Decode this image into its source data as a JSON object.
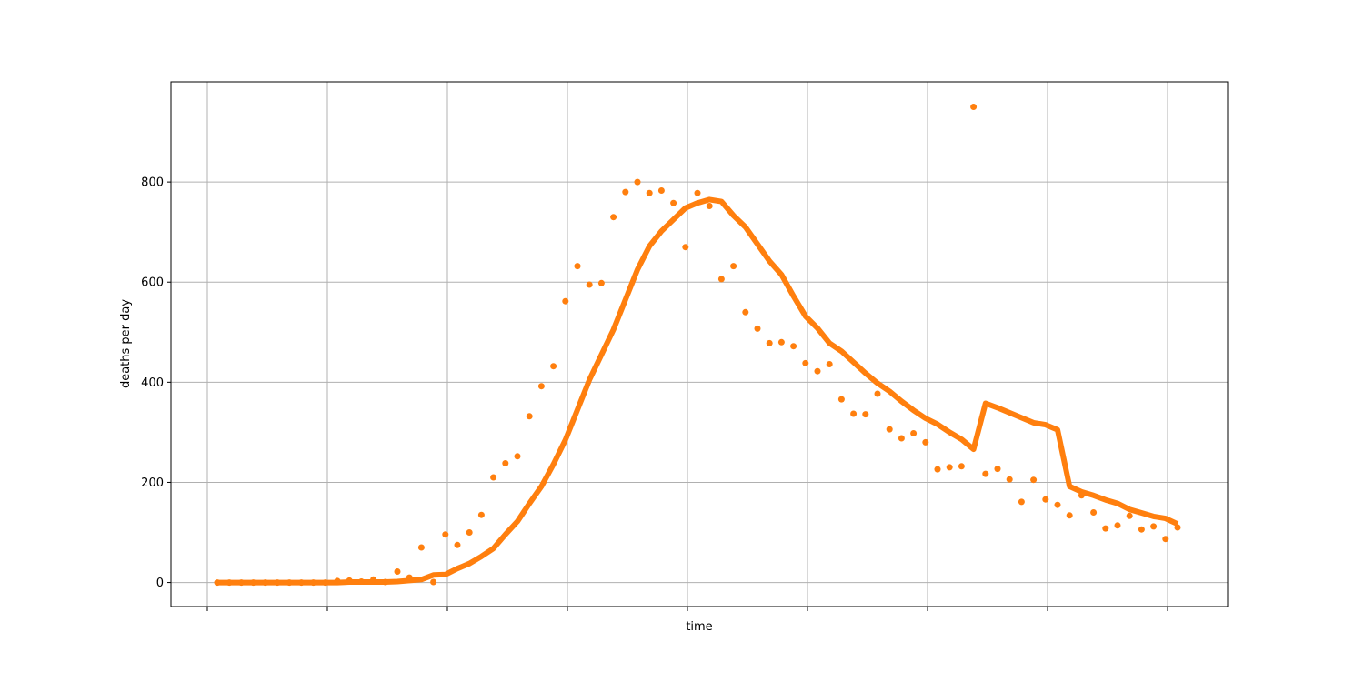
{
  "chart_data": {
    "type": "line",
    "xlabel": "time",
    "ylabel": "deaths per day",
    "title": "",
    "ylim": [
      -48,
      1000
    ],
    "grid": true,
    "yticks": [
      0,
      200,
      400,
      600,
      800
    ],
    "x_tick_count": 9,
    "colors": {
      "series": "#ff7f0e",
      "grid": "#b0b0b0",
      "axis": "#000000",
      "background": "#ffffff"
    },
    "series": [
      {
        "kind": "scatter",
        "points": [
          [
            0,
            0
          ],
          [
            1,
            0
          ],
          [
            2,
            0
          ],
          [
            3,
            0
          ],
          [
            4,
            0
          ],
          [
            5,
            0
          ],
          [
            6,
            0
          ],
          [
            7,
            0
          ],
          [
            8,
            0
          ],
          [
            9,
            0
          ],
          [
            10,
            3
          ],
          [
            11,
            4
          ],
          [
            12,
            2
          ],
          [
            13,
            6
          ],
          [
            14,
            1
          ],
          [
            15,
            22
          ],
          [
            16,
            10
          ],
          [
            17,
            70
          ],
          [
            18,
            1
          ],
          [
            19,
            96
          ],
          [
            20,
            75
          ],
          [
            21,
            100
          ],
          [
            22,
            135
          ],
          [
            23,
            210
          ],
          [
            24,
            238
          ],
          [
            25,
            252
          ],
          [
            26,
            332
          ],
          [
            27,
            392
          ],
          [
            28,
            432
          ],
          [
            29,
            562
          ],
          [
            30,
            632
          ],
          [
            31,
            595
          ],
          [
            32,
            598
          ],
          [
            33,
            730
          ],
          [
            34,
            780
          ],
          [
            35,
            800
          ],
          [
            36,
            778
          ],
          [
            37,
            783
          ],
          [
            38,
            758
          ],
          [
            39,
            670
          ],
          [
            40,
            778
          ],
          [
            41,
            752
          ],
          [
            42,
            606
          ],
          [
            43,
            632
          ],
          [
            44,
            540
          ],
          [
            45,
            507
          ],
          [
            46,
            478
          ],
          [
            47,
            480
          ],
          [
            48,
            472
          ],
          [
            49,
            438
          ],
          [
            50,
            422
          ],
          [
            51,
            436
          ],
          [
            52,
            366
          ],
          [
            53,
            337
          ],
          [
            54,
            336
          ],
          [
            55,
            377
          ],
          [
            56,
            306
          ],
          [
            57,
            288
          ],
          [
            58,
            298
          ],
          [
            59,
            280
          ],
          [
            60,
            226
          ],
          [
            61,
            230
          ],
          [
            62,
            232
          ],
          [
            63,
            950
          ],
          [
            64,
            217
          ],
          [
            65,
            227
          ],
          [
            66,
            206
          ],
          [
            67,
            161
          ],
          [
            68,
            205
          ],
          [
            69,
            166
          ],
          [
            70,
            155
          ],
          [
            71,
            134
          ],
          [
            72,
            174
          ],
          [
            73,
            140
          ],
          [
            74,
            108
          ],
          [
            75,
            114
          ],
          [
            76,
            133
          ],
          [
            77,
            106
          ],
          [
            78,
            112
          ],
          [
            79,
            87
          ],
          [
            80,
            110
          ]
        ]
      },
      {
        "kind": "line",
        "points": [
          [
            0,
            0
          ],
          [
            1,
            0
          ],
          [
            2,
            0
          ],
          [
            3,
            0
          ],
          [
            4,
            0
          ],
          [
            5,
            0
          ],
          [
            6,
            0
          ],
          [
            7,
            0
          ],
          [
            8,
            0
          ],
          [
            9,
            0
          ],
          [
            10,
            0
          ],
          [
            11,
            1
          ],
          [
            12,
            1
          ],
          [
            13,
            1
          ],
          [
            14,
            1
          ],
          [
            15,
            2
          ],
          [
            16,
            4
          ],
          [
            17,
            6
          ],
          [
            18,
            15
          ],
          [
            19,
            16
          ],
          [
            20,
            28
          ],
          [
            21,
            38
          ],
          [
            22,
            52
          ],
          [
            23,
            68
          ],
          [
            24,
            96
          ],
          [
            25,
            122
          ],
          [
            26,
            158
          ],
          [
            27,
            192
          ],
          [
            28,
            236
          ],
          [
            29,
            285
          ],
          [
            30,
            345
          ],
          [
            31,
            405
          ],
          [
            32,
            455
          ],
          [
            33,
            505
          ],
          [
            34,
            565
          ],
          [
            35,
            625
          ],
          [
            36,
            672
          ],
          [
            37,
            702
          ],
          [
            38,
            725
          ],
          [
            39,
            748
          ],
          [
            40,
            758
          ],
          [
            41,
            765
          ],
          [
            42,
            761
          ],
          [
            43,
            733
          ],
          [
            44,
            710
          ],
          [
            45,
            676
          ],
          [
            46,
            642
          ],
          [
            47,
            615
          ],
          [
            48,
            572
          ],
          [
            49,
            532
          ],
          [
            50,
            508
          ],
          [
            51,
            478
          ],
          [
            52,
            462
          ],
          [
            53,
            440
          ],
          [
            54,
            418
          ],
          [
            55,
            398
          ],
          [
            56,
            382
          ],
          [
            57,
            362
          ],
          [
            58,
            344
          ],
          [
            59,
            328
          ],
          [
            60,
            316
          ],
          [
            61,
            300
          ],
          [
            62,
            286
          ],
          [
            63,
            266
          ],
          [
            64,
            358
          ],
          [
            65,
            349
          ],
          [
            66,
            339
          ],
          [
            67,
            329
          ],
          [
            68,
            319
          ],
          [
            69,
            315
          ],
          [
            70,
            305
          ],
          [
            71,
            192
          ],
          [
            72,
            181
          ],
          [
            73,
            174
          ],
          [
            74,
            165
          ],
          [
            75,
            158
          ],
          [
            76,
            146
          ],
          [
            77,
            139
          ],
          [
            78,
            132
          ],
          [
            79,
            128
          ],
          [
            80,
            117
          ]
        ]
      }
    ]
  }
}
